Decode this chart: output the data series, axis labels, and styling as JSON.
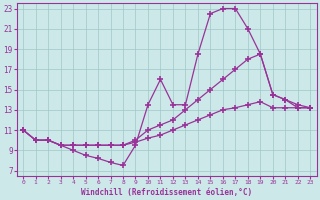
{
  "xlabel": "Windchill (Refroidissement éolien,°C)",
  "bg_color": "#cce8e8",
  "grid_color": "#a0c8c8",
  "line_color": "#993399",
  "xlim": [
    -0.5,
    23.5
  ],
  "ylim": [
    6.5,
    23.5
  ],
  "yticks": [
    7,
    9,
    11,
    13,
    15,
    17,
    19,
    21,
    23
  ],
  "xticks": [
    0,
    1,
    2,
    3,
    4,
    5,
    6,
    7,
    8,
    9,
    10,
    11,
    12,
    13,
    14,
    15,
    16,
    17,
    18,
    19,
    20,
    21,
    22,
    23
  ],
  "line1_x": [
    0,
    1,
    2,
    3,
    4,
    5,
    6,
    7,
    8,
    9,
    10,
    11,
    12,
    13,
    14,
    15,
    16,
    17,
    18,
    19,
    20,
    21,
    22,
    23
  ],
  "line1_y": [
    11.0,
    10.0,
    10.0,
    9.5,
    9.0,
    8.5,
    8.2,
    7.8,
    7.5,
    9.5,
    13.5,
    16.0,
    13.5,
    13.5,
    18.5,
    22.5,
    23.0,
    23.0,
    21.0,
    18.5,
    14.5,
    14.0,
    13.2,
    13.2
  ],
  "line2_x": [
    0,
    1,
    2,
    3,
    4,
    5,
    6,
    7,
    8,
    9,
    10,
    11,
    12,
    13,
    14,
    15,
    16,
    17,
    18,
    19,
    20,
    21,
    22,
    23
  ],
  "line2_y": [
    11.0,
    10.0,
    10.0,
    9.5,
    9.5,
    9.5,
    9.5,
    9.5,
    9.5,
    10.0,
    11.0,
    11.5,
    12.0,
    13.0,
    14.0,
    15.0,
    16.0,
    17.0,
    18.0,
    18.5,
    14.5,
    14.0,
    13.5,
    13.2
  ],
  "line3_x": [
    0,
    1,
    2,
    3,
    4,
    5,
    6,
    7,
    8,
    9,
    10,
    11,
    12,
    13,
    14,
    15,
    16,
    17,
    18,
    19,
    20,
    21,
    22,
    23
  ],
  "line3_y": [
    11.0,
    10.0,
    10.0,
    9.5,
    9.5,
    9.5,
    9.5,
    9.5,
    9.5,
    9.8,
    10.2,
    10.5,
    11.0,
    11.5,
    12.0,
    12.5,
    13.0,
    13.2,
    13.5,
    13.8,
    13.2,
    13.2,
    13.2,
    13.2
  ]
}
